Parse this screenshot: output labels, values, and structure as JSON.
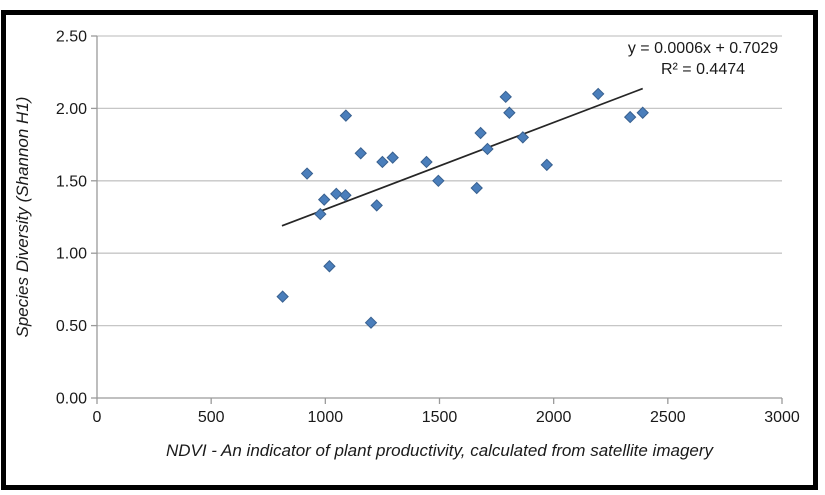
{
  "chart_data": {
    "type": "scatter",
    "title": "",
    "xlabel": "NDVI - An indicator of plant productivity, calculated from satellite imagery",
    "ylabel": "Species Diversity (Shannon H1)",
    "xlim": [
      0,
      3000
    ],
    "ylim": [
      0,
      2.5
    ],
    "xticks": [
      0,
      500,
      1000,
      1500,
      2000,
      2500,
      3000
    ],
    "xtick_labels": [
      "0",
      "500",
      "1000",
      "1500",
      "2000",
      "2500",
      "3000"
    ],
    "yticks": [
      0,
      0.5,
      1,
      1.5,
      2,
      2.5
    ],
    "ytick_labels": [
      "0.00",
      "0.50",
      "1.00",
      "1.50",
      "2.00",
      "2.50"
    ],
    "grid": "horizontal",
    "legend": "none",
    "marker": {
      "shape": "diamond",
      "size": 11
    },
    "points": [
      [
        813,
        0.7
      ],
      [
        1018,
        0.91
      ],
      [
        1200,
        0.52
      ],
      [
        920,
        1.55
      ],
      [
        978,
        1.27
      ],
      [
        995,
        1.37
      ],
      [
        1048,
        1.41
      ],
      [
        1088,
        1.4
      ],
      [
        1090,
        1.95
      ],
      [
        1155,
        1.69
      ],
      [
        1225,
        1.33
      ],
      [
        1250,
        1.63
      ],
      [
        1295,
        1.66
      ],
      [
        1443,
        1.63
      ],
      [
        1495,
        1.5
      ],
      [
        1663,
        1.45
      ],
      [
        1680,
        1.83
      ],
      [
        1710,
        1.72
      ],
      [
        1790,
        2.08
      ],
      [
        1806,
        1.97
      ],
      [
        1865,
        1.8
      ],
      [
        1970,
        1.61
      ],
      [
        2195,
        2.1
      ],
      [
        2335,
        1.94
      ],
      [
        2390,
        1.97
      ]
    ],
    "trendline": {
      "slope": 0.0006,
      "intercept": 0.7029,
      "x_start": 810,
      "x_end": 2390,
      "equation_label": "y = 0.0006x + 0.7029",
      "r_squared_label": "R² = 0.4474"
    },
    "colors": {
      "marker_fill": "#4a7ebb",
      "marker_stroke": "#38608f",
      "gridline": "#c6c6c6",
      "axis": "#9a9a9a",
      "trendline": "#262626",
      "text": "#1a1a1a",
      "frame": "#000000",
      "background": "#ffffff"
    }
  }
}
